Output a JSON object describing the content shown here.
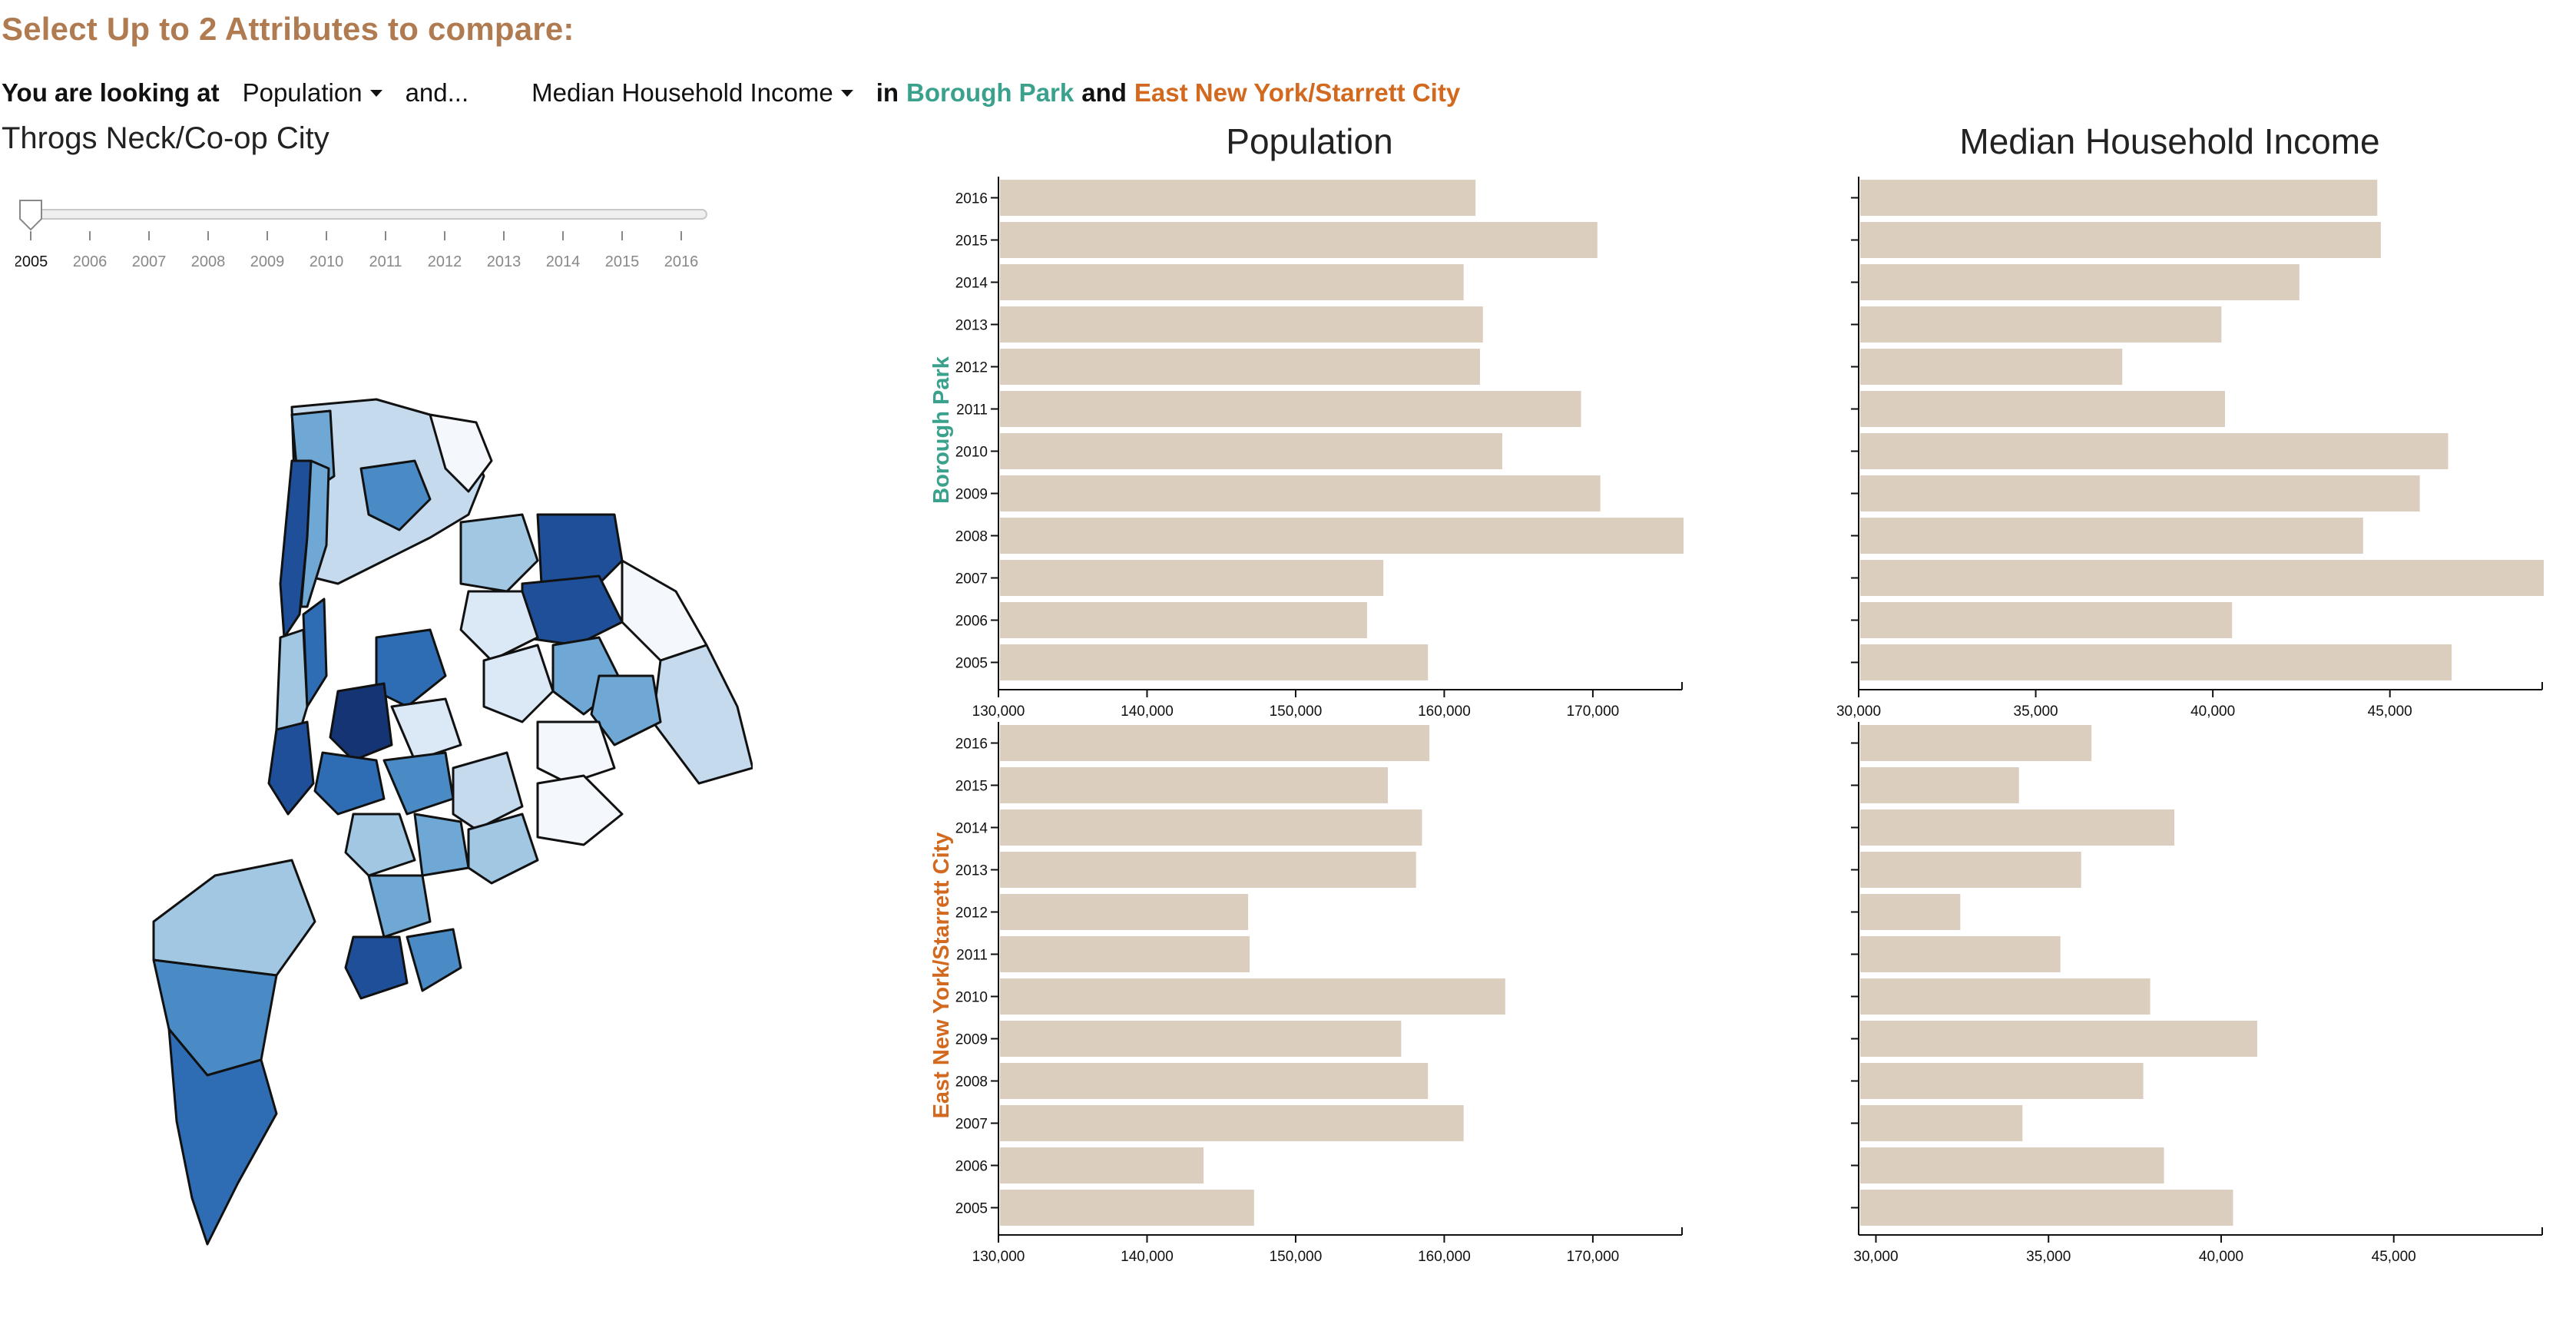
{
  "header": {
    "title": "Select Up to 2 Attributes to compare:",
    "looking_label": "You are looking at",
    "attr1": "Population",
    "and_label": "and...",
    "attr2": "Median Household Income",
    "in_label": "in",
    "neighborhood1": "Borough Park",
    "conj": "and",
    "neighborhood2": "East New York/Starrett City"
  },
  "hover_label": "Throgs Neck/Co-op City",
  "slider": {
    "years": [
      "2005",
      "2006",
      "2007",
      "2008",
      "2009",
      "2010",
      "2011",
      "2012",
      "2013",
      "2014",
      "2015",
      "2016"
    ],
    "selected": "2005"
  },
  "colors": {
    "title": "#b07b50",
    "neighborhood1": "#3aa18c",
    "neighborhood2": "#d2691e",
    "bar": "#dccebf",
    "map_stroke": "#111111",
    "map_scale": [
      "#f4f8fd",
      "#dbe8f5",
      "#c6daee",
      "#a2c7e2",
      "#6fa8d4",
      "#4a8bc5",
      "#2e6db3",
      "#1f4f98",
      "#143474"
    ]
  },
  "chart_data": [
    {
      "type": "bar",
      "title": "Population",
      "row_label": "Borough Park",
      "categories": [
        "2016",
        "2015",
        "2014",
        "2013",
        "2012",
        "2011",
        "2010",
        "2009",
        "2008",
        "2007",
        "2006",
        "2005"
      ],
      "values": [
        162000,
        170200,
        161200,
        162500,
        162300,
        169100,
        163800,
        170400,
        176000,
        155800,
        154700,
        158800
      ],
      "xlim": [
        130000,
        176000
      ],
      "xticks": [
        "130,000",
        "140,000",
        "150,000",
        "160,000",
        "170,000"
      ]
    },
    {
      "type": "bar",
      "title": "Median Household Income",
      "row_label": "Borough Park",
      "categories": [
        "2016",
        "2015",
        "2014",
        "2013",
        "2012",
        "2011",
        "2010",
        "2009",
        "2008",
        "2007",
        "2006",
        "2005"
      ],
      "values": [
        44600,
        44700,
        42400,
        40200,
        37400,
        40300,
        46600,
        45800,
        44200,
        49300,
        40500,
        46700
      ],
      "xlim": [
        30000,
        49300
      ],
      "xticks": [
        "30,000",
        "35,000",
        "40,000",
        "45,000"
      ]
    },
    {
      "type": "bar",
      "title": "Population",
      "row_label": "East New York/Starrett City",
      "categories": [
        "2016",
        "2015",
        "2014",
        "2013",
        "2012",
        "2011",
        "2010",
        "2009",
        "2008",
        "2007",
        "2006",
        "2005"
      ],
      "values": [
        158900,
        156100,
        158400,
        158000,
        146700,
        146800,
        164000,
        157000,
        158800,
        161200,
        143700,
        147100
      ],
      "xlim": [
        130000,
        176000
      ],
      "xticks": [
        "130,000",
        "140,000",
        "150,000",
        "160,000",
        "170,000"
      ]
    },
    {
      "type": "bar",
      "title": "Median Household Income",
      "row_label": "East New York/Starrett City",
      "categories": [
        "2016",
        "2015",
        "2014",
        "2013",
        "2012",
        "2011",
        "2010",
        "2009",
        "2008",
        "2007",
        "2006",
        "2005"
      ],
      "values": [
        36200,
        34100,
        38600,
        35900,
        32400,
        35300,
        37900,
        41000,
        37700,
        34200,
        38300,
        40300
      ],
      "xlim": [
        29500,
        49300
      ],
      "xticks": [
        "30,000",
        "35,000",
        "40,000",
        "45,000"
      ]
    }
  ]
}
